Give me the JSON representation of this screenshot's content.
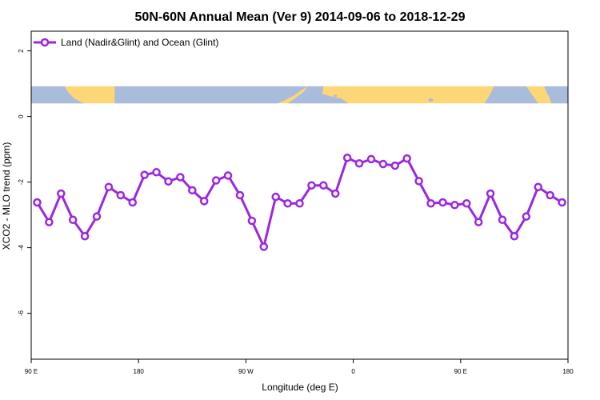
{
  "chart_data": {
    "type": "line",
    "title": "50N-60N Annual Mean (Ver 9)   2014-09-06 to 2018-12-29",
    "xlabel": "Longitude (deg E)",
    "ylabel": "XCO2 - MLO trend (ppm)",
    "x_ticks": [
      {
        "value": 90,
        "label": "90 E"
      },
      {
        "value": 180,
        "label": "180"
      },
      {
        "value": 270,
        "label": "90 W"
      },
      {
        "value": 360,
        "label": "0"
      },
      {
        "value": 450,
        "label": "90 E"
      },
      {
        "value": 540,
        "label": "180"
      }
    ],
    "y_ticks": [
      {
        "value": 2,
        "label": "2"
      },
      {
        "value": 0,
        "label": "0"
      },
      {
        "value": -2,
        "label": "-2"
      },
      {
        "value": -4,
        "label": "-4"
      },
      {
        "value": -6,
        "label": "-6"
      }
    ],
    "xlim": [
      90,
      540
    ],
    "ylim": [
      -7.4,
      2.6
    ],
    "legend": {
      "position": "top-left"
    },
    "map_strip": {
      "y_range": [
        0.4,
        0.92
      ],
      "ocean_color": "#a9bcdc",
      "land_color": "#fdd776"
    },
    "series": [
      {
        "name": "Land (Nadir&Glint) and Ocean (Glint)",
        "color": "#9b27e0",
        "x": [
          95,
          105,
          115,
          125,
          135,
          145,
          155,
          165,
          175,
          185,
          195,
          205,
          215,
          225,
          235,
          245,
          255,
          265,
          275,
          285,
          295,
          305,
          315,
          325,
          335,
          345,
          355,
          365,
          375,
          385,
          395,
          405,
          415,
          425,
          435,
          445,
          455,
          465,
          475,
          485,
          495,
          505,
          515,
          525,
          535
        ],
        "y": [
          -2.62,
          -3.22,
          -2.35,
          -3.15,
          -3.65,
          -3.05,
          -2.15,
          -2.4,
          -2.62,
          -1.78,
          -1.7,
          -1.98,
          -1.85,
          -2.25,
          -2.58,
          -1.95,
          -1.8,
          -2.4,
          -3.18,
          -3.97,
          -2.45,
          -2.65,
          -2.65,
          -2.1,
          -2.1,
          -2.35,
          -1.26,
          -1.43,
          -1.3,
          -1.45,
          -1.5,
          -1.28,
          -1.97,
          -2.65,
          -2.62,
          -2.7,
          -2.65,
          -3.22,
          -2.35,
          -3.15,
          -3.65,
          -3.05,
          -2.15,
          -2.4,
          -2.62
        ]
      }
    ]
  }
}
